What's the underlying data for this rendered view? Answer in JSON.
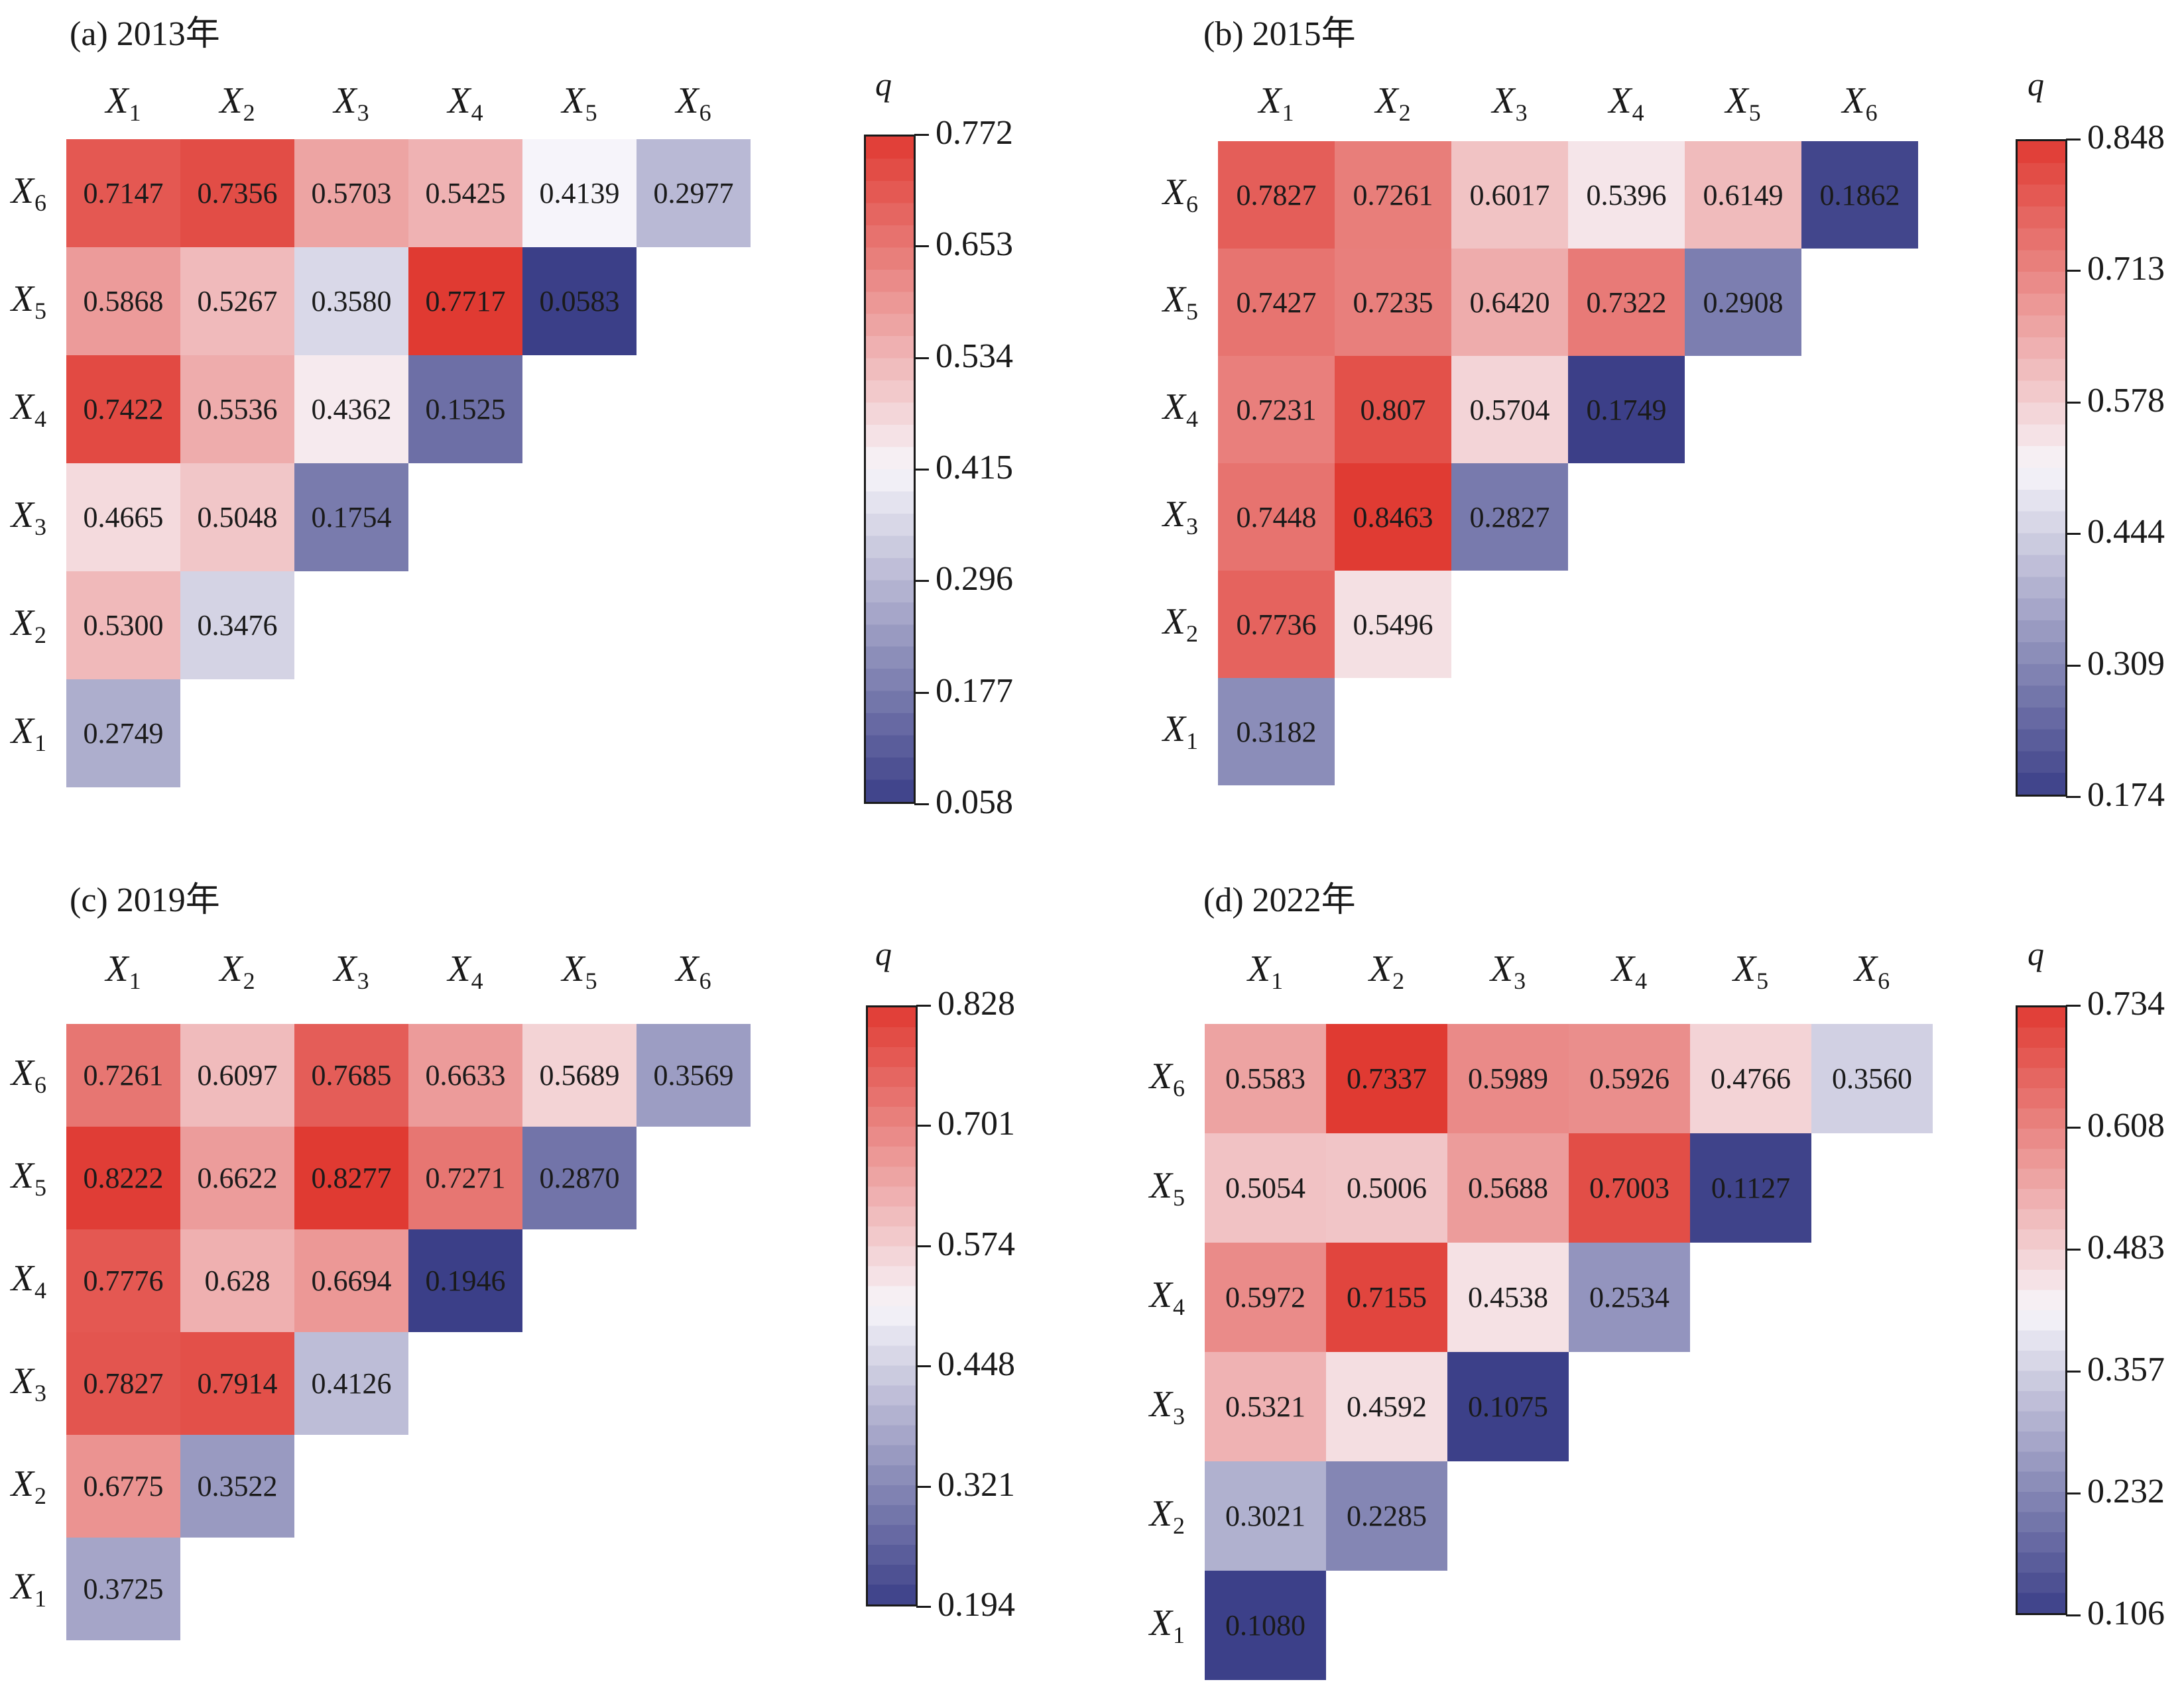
{
  "colormap": {
    "low": "#3b3f88",
    "mid": "#f7f5fa",
    "high": "#e03a32"
  },
  "chart_data": [
    {
      "type": "heatmap",
      "title": "(a) 2013年",
      "variables": [
        "X1",
        "X2",
        "X3",
        "X4",
        "X5",
        "X6"
      ],
      "colorbar_label": "q",
      "colorbar_ticks": [
        "0.772",
        "0.653",
        "0.534",
        "0.415",
        "0.296",
        "0.177",
        "0.058"
      ],
      "vmin": 0.058,
      "vmax": 0.772,
      "rows": [
        {
          "row": "X6",
          "values": [
            "0.7147",
            "0.7356",
            "0.5703",
            "0.5425",
            "0.4139",
            "0.2977"
          ]
        },
        {
          "row": "X5",
          "values": [
            "0.5868",
            "0.5267",
            "0.3580",
            "0.7717",
            "0.0583"
          ]
        },
        {
          "row": "X4",
          "values": [
            "0.7422",
            "0.5536",
            "0.4362",
            "0.1525"
          ]
        },
        {
          "row": "X3",
          "values": [
            "0.4665",
            "0.5048",
            "0.1754"
          ]
        },
        {
          "row": "X2",
          "values": [
            "0.5300",
            "0.3476"
          ]
        },
        {
          "row": "X1",
          "values": [
            "0.2749"
          ]
        }
      ]
    },
    {
      "type": "heatmap",
      "title": "(b) 2015年",
      "variables": [
        "X1",
        "X2",
        "X3",
        "X4",
        "X5",
        "X6"
      ],
      "colorbar_label": "q",
      "colorbar_ticks": [
        "0.848",
        "0.713",
        "0.578",
        "0.444",
        "0.309",
        "0.174"
      ],
      "vmin": 0.174,
      "vmax": 0.848,
      "rows": [
        {
          "row": "X6",
          "values": [
            "0.7827",
            "0.7261",
            "0.6017",
            "0.5396",
            "0.6149",
            "0.1862"
          ]
        },
        {
          "row": "X5",
          "values": [
            "0.7427",
            "0.7235",
            "0.6420",
            "0.7322",
            "0.2908"
          ]
        },
        {
          "row": "X4",
          "values": [
            "0.7231",
            "0.807",
            "0.5704",
            "0.1749"
          ]
        },
        {
          "row": "X3",
          "values": [
            "0.7448",
            "0.8463",
            "0.2827"
          ]
        },
        {
          "row": "X2",
          "values": [
            "0.7736",
            "0.5496"
          ]
        },
        {
          "row": "X1",
          "values": [
            "0.3182"
          ]
        }
      ]
    },
    {
      "type": "heatmap",
      "title": "(c) 2019年",
      "variables": [
        "X1",
        "X2",
        "X3",
        "X4",
        "X5",
        "X6"
      ],
      "colorbar_label": "q",
      "colorbar_ticks": [
        "0.828",
        "0.701",
        "0.574",
        "0.448",
        "0.321",
        "0.194"
      ],
      "vmin": 0.194,
      "vmax": 0.828,
      "rows": [
        {
          "row": "X6",
          "values": [
            "0.7261",
            "0.6097",
            "0.7685",
            "0.6633",
            "0.5689",
            "0.3569"
          ]
        },
        {
          "row": "X5",
          "values": [
            "0.8222",
            "0.6622",
            "0.8277",
            "0.7271",
            "0.2870"
          ]
        },
        {
          "row": "X4",
          "values": [
            "0.7776",
            "0.628",
            "0.6694",
            "0.1946"
          ]
        },
        {
          "row": "X3",
          "values": [
            "0.7827",
            "0.7914",
            "0.4126"
          ]
        },
        {
          "row": "X2",
          "values": [
            "0.6775",
            "0.3522"
          ]
        },
        {
          "row": "X1",
          "values": [
            "0.3725"
          ]
        }
      ]
    },
    {
      "type": "heatmap",
      "title": "(d) 2022年",
      "variables": [
        "X1",
        "X2",
        "X3",
        "X4",
        "X5",
        "X6"
      ],
      "colorbar_label": "q",
      "colorbar_ticks": [
        "0.734",
        "0.608",
        "0.483",
        "0.357",
        "0.232",
        "0.106"
      ],
      "vmin": 0.106,
      "vmax": 0.734,
      "rows": [
        {
          "row": "X6",
          "values": [
            "0.5583",
            "0.7337",
            "0.5989",
            "0.5926",
            "0.4766",
            "0.3560"
          ]
        },
        {
          "row": "X5",
          "values": [
            "0.5054",
            "0.5006",
            "0.5688",
            "0.7003",
            "0.1127"
          ]
        },
        {
          "row": "X4",
          "values": [
            "0.5972",
            "0.7155",
            "0.4538",
            "0.2534"
          ]
        },
        {
          "row": "X3",
          "values": [
            "0.5321",
            "0.4592",
            "0.1075"
          ]
        },
        {
          "row": "X2",
          "values": [
            "0.3021",
            "0.2285"
          ]
        },
        {
          "row": "X1",
          "values": [
            "0.1080"
          ]
        }
      ]
    }
  ]
}
